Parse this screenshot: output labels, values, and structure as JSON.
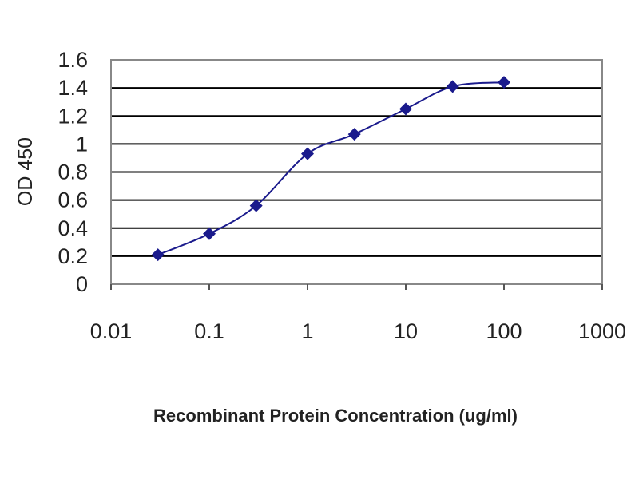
{
  "chart_data": {
    "type": "line",
    "title": "",
    "xlabel": "Recombinant Protein Concentration (ug/ml)",
    "ylabel": "OD 450",
    "x_scale": "log",
    "xlim": [
      0.01,
      1000
    ],
    "ylim": [
      0,
      1.6
    ],
    "x_ticks": [
      "0.01",
      "0.1",
      "1",
      "10",
      "100",
      "1000"
    ],
    "y_ticks": [
      "0",
      "0.2",
      "0.4",
      "0.6",
      "0.8",
      "1",
      "1.2",
      "1.4",
      "1.6"
    ],
    "grid": "horizontal",
    "legend": "none",
    "series": [
      {
        "color": "#1a1a8c",
        "marker": "diamond",
        "x": [
          0.03,
          0.1,
          0.3,
          1,
          3,
          10,
          30,
          100
        ],
        "y": [
          0.21,
          0.36,
          0.56,
          0.93,
          1.07,
          1.25,
          1.41,
          1.44
        ]
      }
    ]
  }
}
